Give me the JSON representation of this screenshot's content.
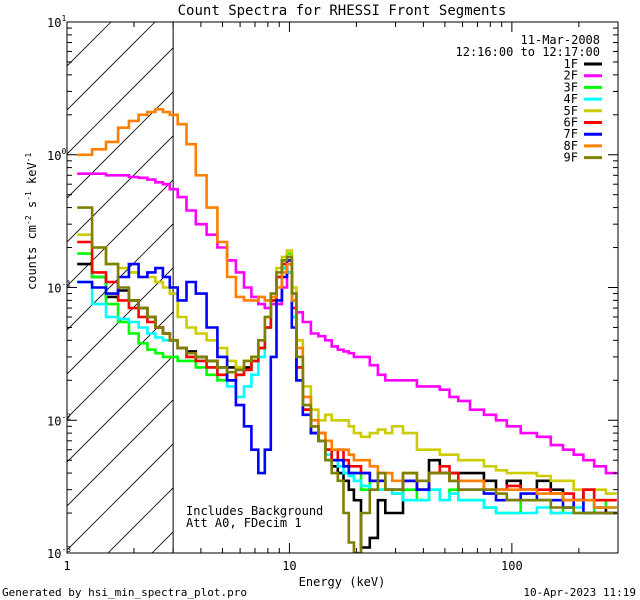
{
  "chart_data": {
    "type": "line",
    "title": "Count Spectra for RHESSI Front Segments",
    "xlabel": "Energy (keV)",
    "ylabel": "counts cm",
    "xscale": "log",
    "yscale": "log",
    "xlim": [
      1,
      300
    ],
    "ylim": [
      0.001,
      10
    ],
    "x_tick_labels": [
      {
        "value": 1,
        "label": "1"
      },
      {
        "value": 10,
        "label": "10"
      },
      {
        "value": 100,
        "label": "100"
      }
    ],
    "y_tick_labels": [
      {
        "value": 10,
        "base": "10",
        "exp": "1"
      },
      {
        "value": 1,
        "base": "10",
        "exp": "0"
      },
      {
        "value": 0.1,
        "base": "10",
        "exp": "-1"
      },
      {
        "value": 0.01,
        "base": "10",
        "exp": "-2"
      },
      {
        "value": 0.001,
        "base": "10",
        "exp": "-3"
      }
    ],
    "shaded_region": {
      "x": [
        1,
        3
      ],
      "pattern": "diagonal-hatch"
    },
    "date": "11-Mar-2008",
    "time_range": "12:16:00 to 12:17:00",
    "notes": [
      "Includes Background",
      "Att A0, FDecim 1"
    ],
    "series": [
      {
        "name": "1F",
        "color": "#000000",
        "x": [
          1.2,
          1.4,
          1.6,
          1.8,
          2.0,
          2.2,
          2.4,
          2.6,
          2.8,
          3.0,
          3.3,
          3.6,
          4.0,
          4.5,
          5.0,
          5.5,
          6.0,
          6.5,
          7.0,
          7.5,
          8.0,
          8.5,
          9.0,
          9.5,
          10.0,
          10.5,
          11.0,
          12,
          13,
          14,
          15,
          16,
          17,
          18,
          19,
          20,
          22,
          24,
          26,
          28,
          30,
          35,
          40,
          45,
          50,
          55,
          60,
          70,
          80,
          90,
          100,
          120,
          140,
          160,
          180,
          200,
          220,
          250,
          280
        ],
        "y": [
          0.15,
          0.12,
          0.085,
          0.095,
          0.08,
          0.07,
          0.06,
          0.05,
          0.045,
          0.04,
          0.035,
          0.033,
          0.03,
          0.028,
          0.025,
          0.025,
          0.024,
          0.025,
          0.028,
          0.035,
          0.05,
          0.08,
          0.12,
          0.14,
          0.13,
          0.06,
          0.02,
          0.012,
          0.008,
          0.007,
          0.006,
          0.0045,
          0.004,
          0.0035,
          0.003,
          0.0025,
          0.0011,
          0.0013,
          0.0025,
          0.002,
          0.002,
          0.0035,
          0.003,
          0.005,
          0.004,
          0.004,
          0.004,
          0.004,
          0.0035,
          0.003,
          0.0035,
          0.003,
          0.0035,
          0.003,
          0.0025,
          0.0025,
          0.003,
          0.0022,
          0.002
        ]
      },
      {
        "name": "2F",
        "color": "#ff00ff",
        "x": [
          1.2,
          1.4,
          1.6,
          1.8,
          2.0,
          2.2,
          2.4,
          2.6,
          2.8,
          3.0,
          3.3,
          3.6,
          4.0,
          4.5,
          5.0,
          5.5,
          6.0,
          6.5,
          7.0,
          7.5,
          8.0,
          8.5,
          9.0,
          9.5,
          10.0,
          10.5,
          11.0,
          12,
          13,
          14,
          15,
          16,
          17,
          18,
          19,
          20,
          22,
          24,
          26,
          28,
          30,
          35,
          40,
          45,
          50,
          55,
          60,
          70,
          80,
          90,
          100,
          120,
          140,
          160,
          180,
          200,
          220,
          250,
          280
        ],
        "y": [
          0.72,
          0.72,
          0.7,
          0.7,
          0.68,
          0.67,
          0.65,
          0.62,
          0.6,
          0.55,
          0.48,
          0.38,
          0.3,
          0.25,
          0.2,
          0.16,
          0.13,
          0.1,
          0.085,
          0.075,
          0.07,
          0.075,
          0.075,
          0.1,
          0.16,
          0.09,
          0.065,
          0.055,
          0.045,
          0.043,
          0.04,
          0.036,
          0.034,
          0.033,
          0.032,
          0.03,
          0.03,
          0.026,
          0.022,
          0.02,
          0.02,
          0.02,
          0.018,
          0.018,
          0.017,
          0.015,
          0.014,
          0.012,
          0.011,
          0.01,
          0.009,
          0.008,
          0.0075,
          0.0065,
          0.006,
          0.0055,
          0.005,
          0.0045,
          0.004
        ]
      },
      {
        "name": "3F",
        "color": "#00ff00",
        "x": [
          1.2,
          1.4,
          1.6,
          1.8,
          2.0,
          2.2,
          2.4,
          2.6,
          2.8,
          3.0,
          3.3,
          3.6,
          4.0,
          4.5,
          5.0,
          5.5,
          6.0,
          6.5,
          7.0,
          7.5,
          8.0,
          8.5,
          9.0,
          9.5,
          10.0,
          10.5,
          11.0,
          12,
          13,
          14,
          15,
          16,
          17,
          18,
          19,
          20,
          22,
          24,
          26,
          28,
          30,
          35,
          40,
          45,
          50,
          55,
          60,
          70,
          80,
          90,
          100,
          120,
          140,
          160,
          180,
          200,
          220,
          250,
          280
        ],
        "y": [
          0.18,
          0.12,
          0.075,
          0.055,
          0.045,
          0.038,
          0.034,
          0.032,
          0.03,
          0.03,
          0.028,
          0.028,
          0.025,
          0.022,
          0.02,
          0.02,
          0.022,
          0.024,
          0.028,
          0.035,
          0.05,
          0.08,
          0.12,
          0.16,
          0.18,
          0.08,
          0.025,
          0.012,
          0.009,
          0.007,
          0.006,
          0.006,
          0.005,
          0.0045,
          0.004,
          0.004,
          0.003,
          0.0035,
          0.003,
          0.003,
          0.0028,
          0.003,
          0.0025,
          0.003,
          0.0025,
          0.003,
          0.0025,
          0.0025,
          0.0022,
          0.002,
          0.002,
          0.0025,
          0.0025,
          0.002,
          0.0022,
          0.002,
          0.002,
          0.0025,
          0.0022
        ]
      },
      {
        "name": "4F",
        "color": "#00ffff",
        "x": [
          1.2,
          1.4,
          1.6,
          1.8,
          2.0,
          2.2,
          2.4,
          2.6,
          2.8,
          3.0,
          3.3,
          3.6,
          4.0,
          4.5,
          5.0,
          5.5,
          6.0,
          6.5,
          7.0,
          7.5,
          8.0,
          8.5,
          9.0,
          9.5,
          10.0,
          10.5,
          11.0,
          12,
          13,
          14,
          15,
          16,
          17,
          18,
          19,
          20,
          22,
          24,
          26,
          28,
          30,
          35,
          40,
          45,
          50,
          55,
          60,
          70,
          80,
          90,
          100,
          120,
          140,
          160,
          180,
          200,
          220,
          250,
          280
        ],
        "y": [
          0.11,
          0.075,
          0.06,
          0.058,
          0.055,
          0.05,
          0.045,
          0.042,
          0.04,
          0.04,
          0.035,
          0.03,
          0.028,
          0.025,
          0.022,
          0.018,
          0.015,
          0.018,
          0.022,
          0.03,
          0.05,
          0.08,
          0.12,
          0.14,
          0.13,
          0.06,
          0.02,
          0.012,
          0.009,
          0.007,
          0.0055,
          0.005,
          0.0045,
          0.004,
          0.0038,
          0.0035,
          0.0032,
          0.003,
          0.003,
          0.003,
          0.0028,
          0.0025,
          0.0025,
          0.003,
          0.0025,
          0.0028,
          0.0025,
          0.0025,
          0.0022,
          0.002,
          0.002,
          0.002,
          0.0022,
          0.002,
          0.002,
          0.0022,
          0.0025,
          0.0022,
          0.0022
        ]
      },
      {
        "name": "5F",
        "color": "#cccc00",
        "x": [
          1.2,
          1.4,
          1.6,
          1.8,
          2.0,
          2.2,
          2.4,
          2.6,
          2.8,
          3.0,
          3.3,
          3.6,
          4.0,
          4.5,
          5.0,
          5.5,
          6.0,
          6.5,
          7.0,
          7.5,
          8.0,
          8.5,
          9.0,
          9.5,
          10.0,
          10.5,
          11.0,
          12,
          13,
          14,
          15,
          16,
          17,
          18,
          19,
          20,
          22,
          24,
          26,
          28,
          30,
          35,
          40,
          45,
          50,
          55,
          60,
          70,
          80,
          90,
          100,
          120,
          140,
          160,
          180,
          200,
          220,
          250,
          280
        ],
        "y": [
          0.25,
          0.2,
          0.15,
          0.14,
          0.13,
          0.12,
          0.12,
          0.11,
          0.1,
          0.09,
          0.06,
          0.05,
          0.045,
          0.04,
          0.035,
          0.028,
          0.025,
          0.028,
          0.03,
          0.04,
          0.06,
          0.09,
          0.14,
          0.17,
          0.19,
          0.1,
          0.04,
          0.018,
          0.012,
          0.01,
          0.011,
          0.01,
          0.01,
          0.01,
          0.009,
          0.008,
          0.0075,
          0.008,
          0.0085,
          0.008,
          0.009,
          0.008,
          0.006,
          0.006,
          0.0055,
          0.0055,
          0.005,
          0.005,
          0.0045,
          0.0042,
          0.004,
          0.004,
          0.0038,
          0.0035,
          0.0035,
          0.003,
          0.003,
          0.003,
          0.0028
        ]
      },
      {
        "name": "6F",
        "color": "#ff0000",
        "x": [
          1.2,
          1.4,
          1.6,
          1.8,
          2.0,
          2.2,
          2.4,
          2.6,
          2.8,
          3.0,
          3.3,
          3.6,
          4.0,
          4.5,
          5.0,
          5.5,
          6.0,
          6.5,
          7.0,
          7.5,
          8.0,
          8.5,
          9.0,
          9.5,
          10.0,
          10.5,
          11.0,
          12,
          13,
          14,
          15,
          16,
          17,
          18,
          19,
          20,
          22,
          24,
          26,
          28,
          30,
          35,
          40,
          45,
          50,
          55,
          60,
          70,
          80,
          90,
          100,
          120,
          140,
          160,
          180,
          200,
          220,
          250,
          280
        ],
        "y": [
          0.22,
          0.13,
          0.11,
          0.08,
          0.07,
          0.06,
          0.055,
          0.05,
          0.045,
          0.04,
          0.035,
          0.03,
          0.028,
          0.025,
          0.022,
          0.02,
          0.022,
          0.024,
          0.028,
          0.035,
          0.05,
          0.08,
          0.12,
          0.15,
          0.15,
          0.07,
          0.025,
          0.012,
          0.009,
          0.008,
          0.006,
          0.005,
          0.006,
          0.005,
          0.0045,
          0.0045,
          0.004,
          0.0035,
          0.0035,
          0.003,
          0.003,
          0.0035,
          0.003,
          0.004,
          0.0045,
          0.004,
          0.0035,
          0.0035,
          0.003,
          0.003,
          0.0032,
          0.003,
          0.003,
          0.0028,
          0.0028,
          0.0025,
          0.003,
          0.0025,
          0.0025
        ]
      },
      {
        "name": "7F",
        "color": "#0000ff",
        "x": [
          1.2,
          1.4,
          1.6,
          1.8,
          2.0,
          2.2,
          2.4,
          2.6,
          2.8,
          3.0,
          3.3,
          3.6,
          4.0,
          4.5,
          5.0,
          5.5,
          6.0,
          6.5,
          7.0,
          7.5,
          8.0,
          8.5,
          9.0,
          9.5,
          10.0,
          10.5,
          11.0,
          12,
          13,
          14,
          15,
          16,
          17,
          18,
          19,
          20,
          22,
          24,
          26,
          28,
          30,
          35,
          40,
          45,
          50,
          55,
          60,
          70,
          80,
          90,
          100,
          120,
          140,
          160,
          180,
          200,
          220,
          250,
          280
        ],
        "y": [
          0.11,
          0.1,
          0.09,
          0.12,
          0.15,
          0.12,
          0.13,
          0.14,
          0.12,
          0.1,
          0.08,
          0.11,
          0.09,
          0.05,
          0.03,
          0.02,
          0.013,
          0.009,
          0.006,
          0.004,
          0.006,
          0.03,
          0.08,
          0.12,
          0.16,
          0.05,
          0.02,
          0.011,
          0.008,
          0.007,
          0.005,
          0.005,
          0.005,
          0.0045,
          0.004,
          0.004,
          0.004,
          0.0035,
          0.0035,
          0.003,
          0.003,
          0.0035,
          0.003,
          0.004,
          0.004,
          0.0035,
          0.003,
          0.003,
          0.0028,
          0.0025,
          0.0025,
          0.0028,
          0.0025,
          0.0025,
          0.0022,
          0.0025,
          0.002,
          0.002,
          0.002
        ]
      },
      {
        "name": "8F",
        "color": "#ff8000",
        "x": [
          1.2,
          1.4,
          1.6,
          1.8,
          2.0,
          2.2,
          2.4,
          2.6,
          2.8,
          3.0,
          3.3,
          3.6,
          4.0,
          4.5,
          5.0,
          5.5,
          6.0,
          6.5,
          7.0,
          7.5,
          8.0,
          8.5,
          9.0,
          9.5,
          10.0,
          10.5,
          11.0,
          12,
          13,
          14,
          15,
          16,
          17,
          18,
          19,
          20,
          22,
          24,
          26,
          28,
          30,
          35,
          40,
          45,
          50,
          55,
          60,
          70,
          80,
          90,
          100,
          120,
          140,
          160,
          180,
          200,
          220,
          250,
          280
        ],
        "y": [
          1.0,
          1.1,
          1.25,
          1.6,
          1.8,
          2.0,
          2.1,
          2.2,
          2.1,
          2.0,
          1.7,
          1.2,
          0.7,
          0.4,
          0.22,
          0.12,
          0.085,
          0.08,
          0.08,
          0.085,
          0.08,
          0.085,
          0.1,
          0.13,
          0.15,
          0.08,
          0.035,
          0.015,
          0.01,
          0.008,
          0.007,
          0.006,
          0.006,
          0.006,
          0.0055,
          0.005,
          0.005,
          0.0045,
          0.004,
          0.004,
          0.0035,
          0.004,
          0.0035,
          0.004,
          0.004,
          0.0035,
          0.0035,
          0.0035,
          0.003,
          0.003,
          0.003,
          0.003,
          0.0028,
          0.0028,
          0.0025,
          0.0025,
          0.0025,
          0.0022,
          0.0022
        ]
      },
      {
        "name": "9F",
        "color": "#808000",
        "x": [
          1.2,
          1.4,
          1.6,
          1.8,
          2.0,
          2.2,
          2.4,
          2.6,
          2.8,
          3.0,
          3.3,
          3.6,
          4.0,
          4.5,
          5.0,
          5.5,
          6.0,
          6.5,
          7.0,
          7.5,
          8.0,
          8.5,
          9.0,
          9.5,
          10.0,
          10.5,
          11.0,
          12,
          13,
          14,
          15,
          16,
          17,
          18,
          19,
          20,
          22,
          24,
          26,
          28,
          30,
          35,
          40,
          45,
          50,
          55,
          60,
          70,
          80,
          90,
          100,
          120,
          140,
          160,
          180,
          200,
          220,
          250,
          280
        ],
        "y": [
          0.4,
          0.2,
          0.15,
          0.1,
          0.08,
          0.07,
          0.06,
          0.05,
          0.045,
          0.04,
          0.035,
          0.032,
          0.03,
          0.028,
          0.025,
          0.023,
          0.024,
          0.028,
          0.03,
          0.04,
          0.06,
          0.09,
          0.13,
          0.16,
          0.17,
          0.09,
          0.03,
          0.013,
          0.009,
          0.007,
          0.005,
          0.004,
          0.0035,
          0.002,
          0.0012,
          0.001,
          0.002,
          0.003,
          0.004,
          0.003,
          0.003,
          0.004,
          0.0035,
          0.004,
          0.004,
          0.0035,
          0.003,
          0.003,
          0.003,
          0.0028,
          0.0025,
          0.0025,
          0.0025,
          0.0022,
          0.0022,
          0.002,
          0.002,
          0.002,
          0.002
        ]
      }
    ]
  },
  "footer": {
    "generated_by": "Generated by hsi_min_spectra_plot.pro",
    "timestamp": "10-Apr-2023 11:19"
  }
}
